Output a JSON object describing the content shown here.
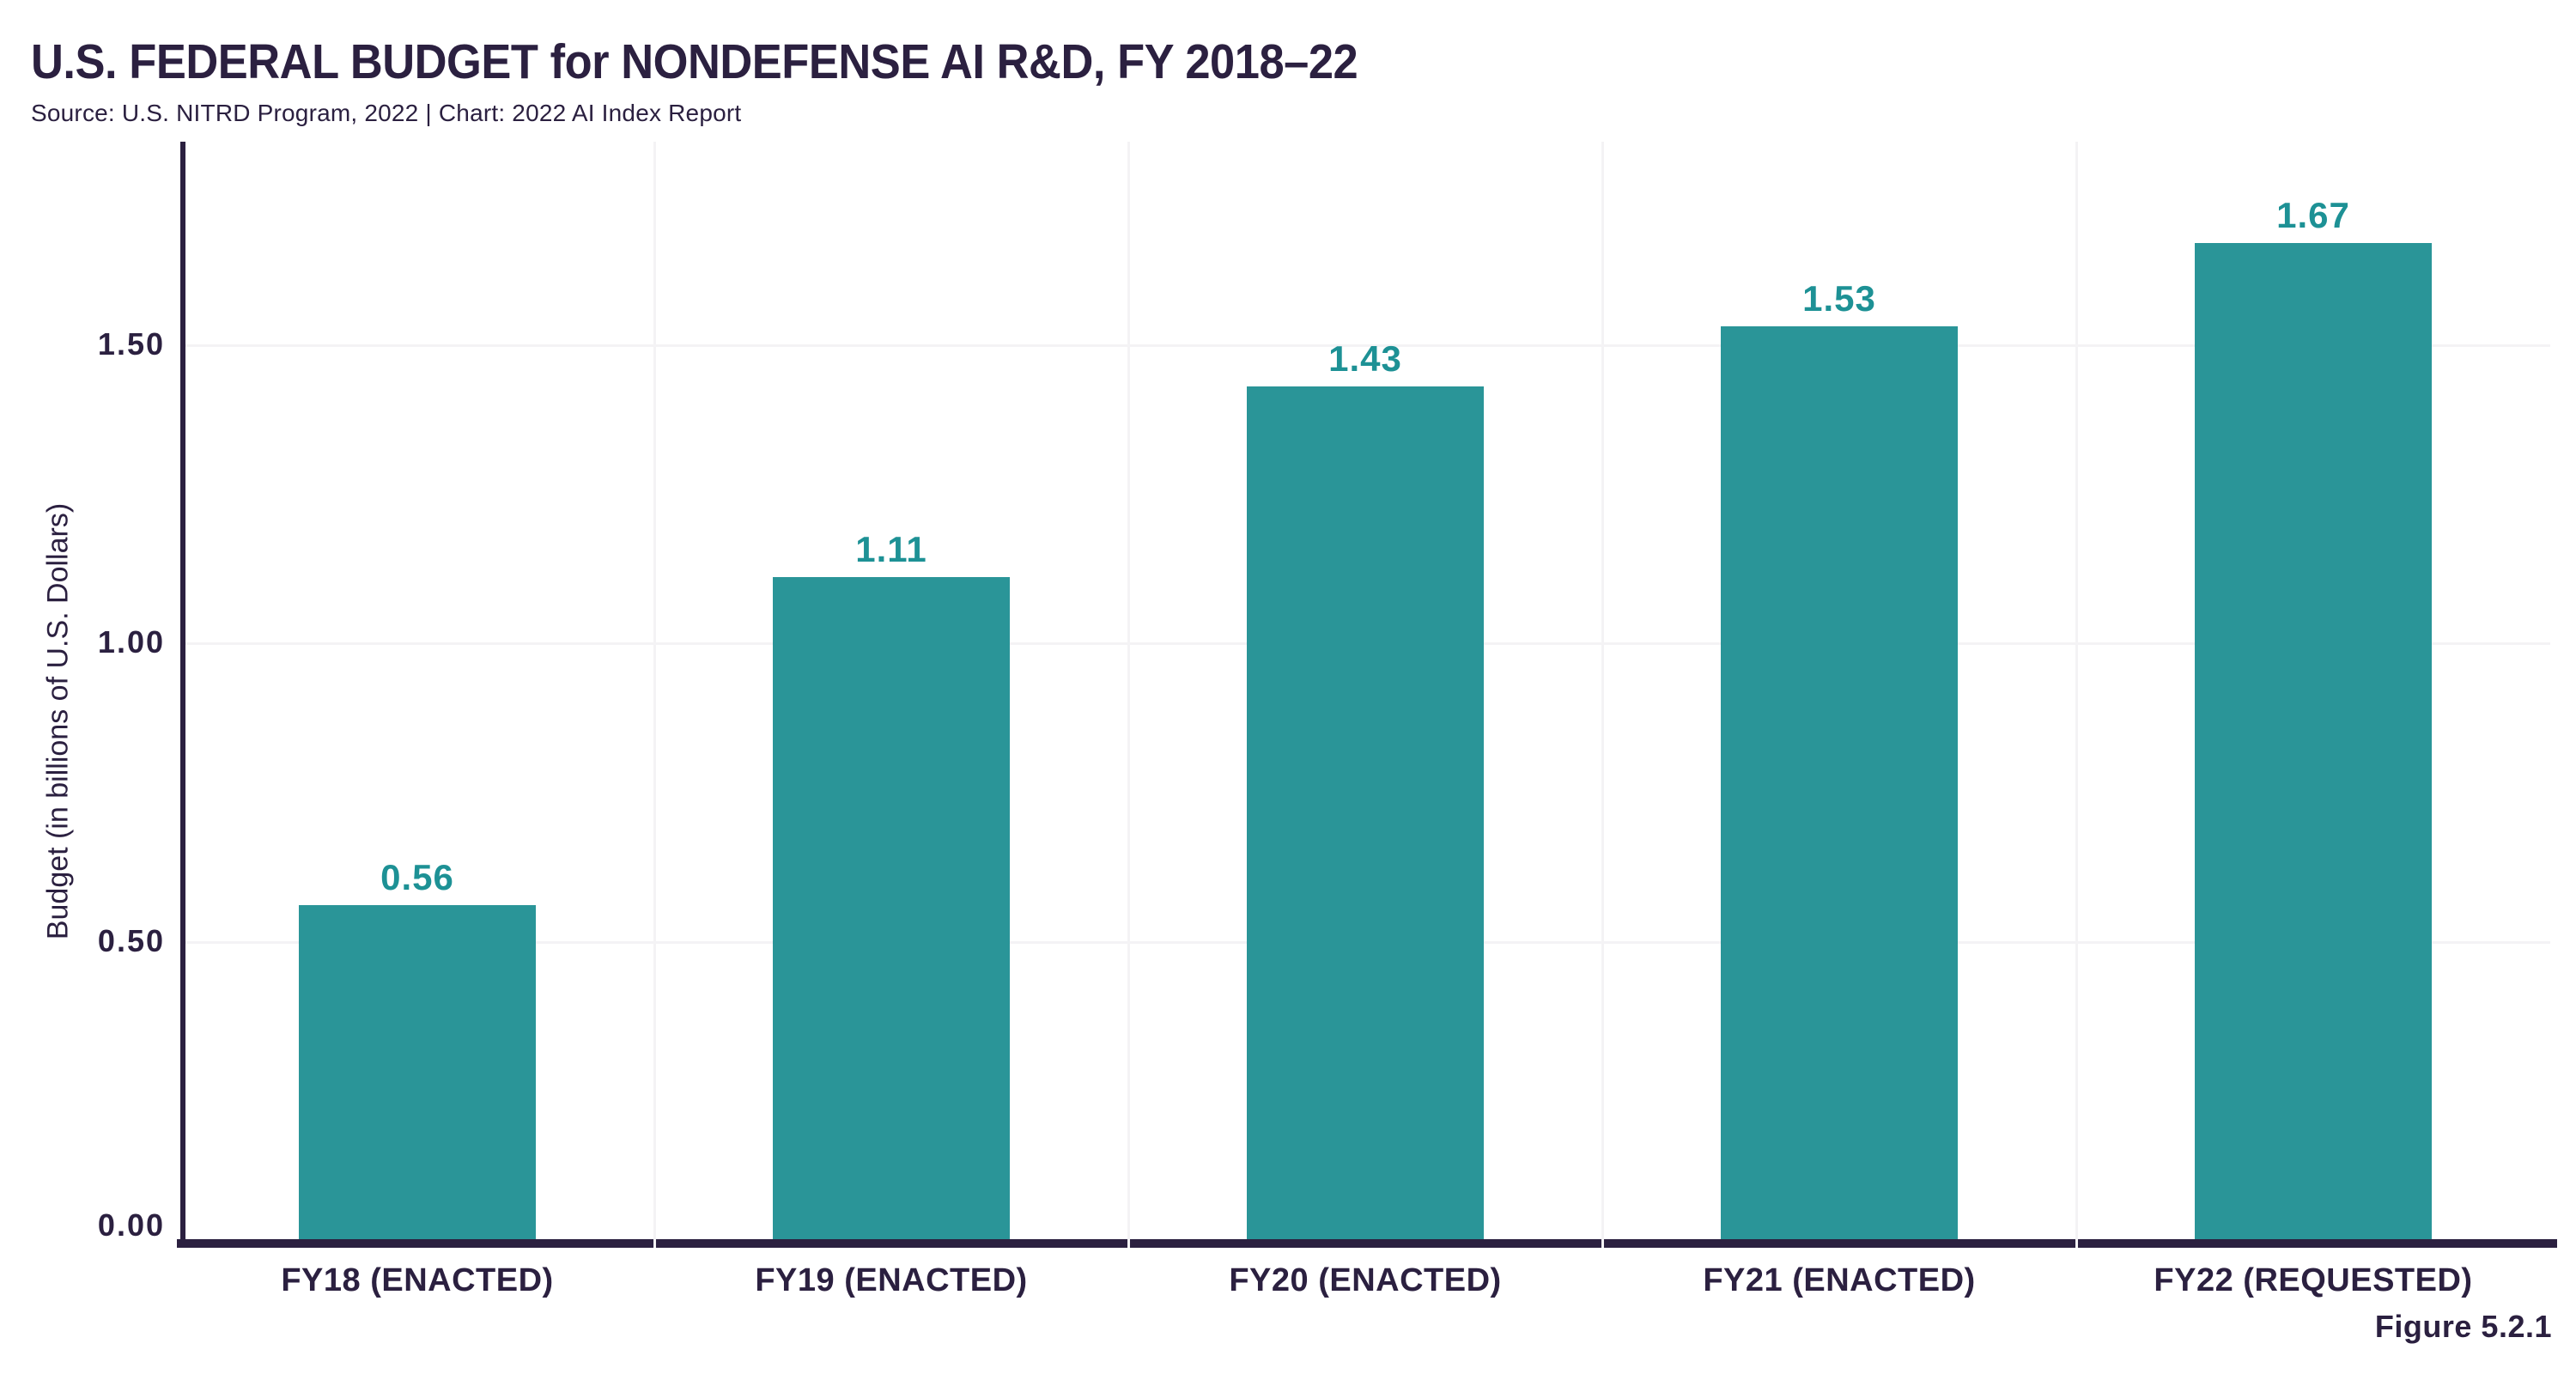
{
  "header": {
    "title": "U.S. FEDERAL BUDGET for NONDEFENSE AI R&D, FY 2018–22",
    "source_line": "Source: U.S. NITRD Program, 2022 | Chart: 2022 AI Index Report"
  },
  "figure_label": "Figure 5.2.1",
  "chart_data": {
    "type": "bar",
    "title": "U.S. FEDERAL BUDGET for NONDEFENSE AI R&D, FY 2018–22",
    "categories": [
      "FY18 (ENACTED)",
      "FY19 (ENACTED)",
      "FY20 (ENACTED)",
      "FY21 (ENACTED)",
      "FY22 (REQUESTED)"
    ],
    "values": [
      0.56,
      1.11,
      1.43,
      1.53,
      1.67
    ],
    "value_labels": [
      "0.56",
      "1.11",
      "1.43",
      "1.53",
      "1.67"
    ],
    "xlabel": "",
    "ylabel": "Budget (in billions of U.S. Dollars)",
    "yticks": [
      0,
      0.5,
      1.0,
      1.5
    ],
    "ytick_labels": [
      "0.00",
      "0.50",
      "1.00",
      "1.50"
    ],
    "ylim": [
      0,
      1.84
    ],
    "bar_width_fraction": 0.5,
    "grid": {
      "horizontal": true,
      "vertical": "category-boundaries"
    },
    "legend": "none",
    "colors": {
      "bar": "#2A9598",
      "value_label": "#1D9195",
      "text_dark": "#2B2040",
      "grid": "#F4F3F5",
      "axis": "#2B2040",
      "background": "#FFFFFF"
    }
  }
}
